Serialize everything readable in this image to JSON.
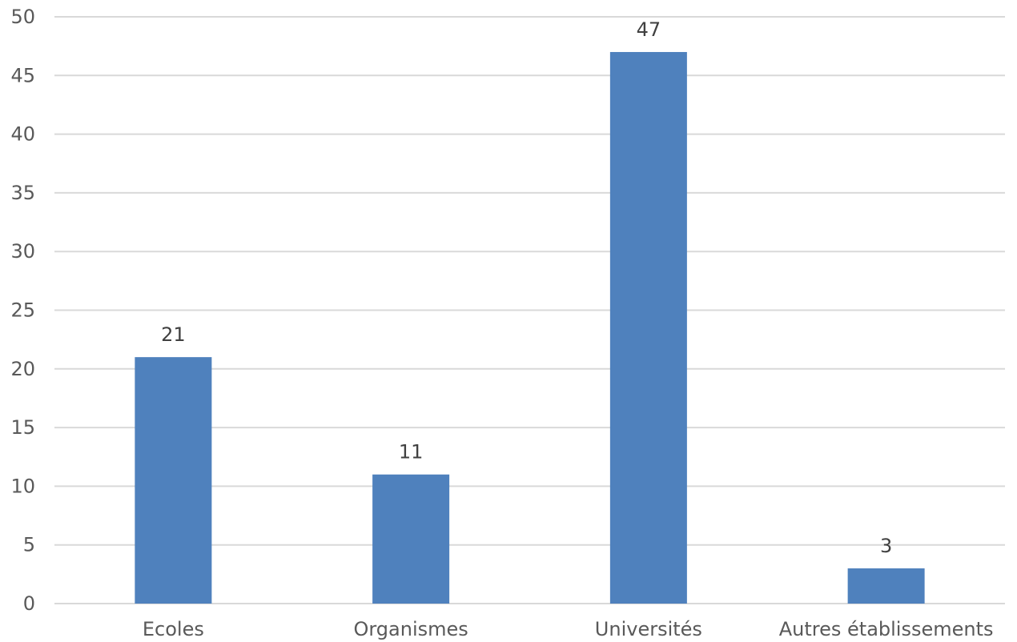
{
  "chart_data": {
    "type": "bar",
    "categories": [
      "Ecoles",
      "Organismes",
      "Universités",
      "Autres établissements"
    ],
    "values": [
      21,
      11,
      47,
      3
    ],
    "data_labels": [
      "21",
      "11",
      "47",
      "3"
    ],
    "title": "",
    "xlabel": "",
    "ylabel": "",
    "ylim": [
      0,
      50
    ],
    "yticks": [
      0,
      5,
      10,
      15,
      20,
      25,
      30,
      35,
      40,
      45,
      50
    ],
    "ytick_labels": [
      "0",
      "5",
      "10",
      "15",
      "20",
      "25",
      "30",
      "35",
      "40",
      "45",
      "50"
    ],
    "grid": true,
    "legend": "none",
    "bar_color": "#4f81bd"
  }
}
